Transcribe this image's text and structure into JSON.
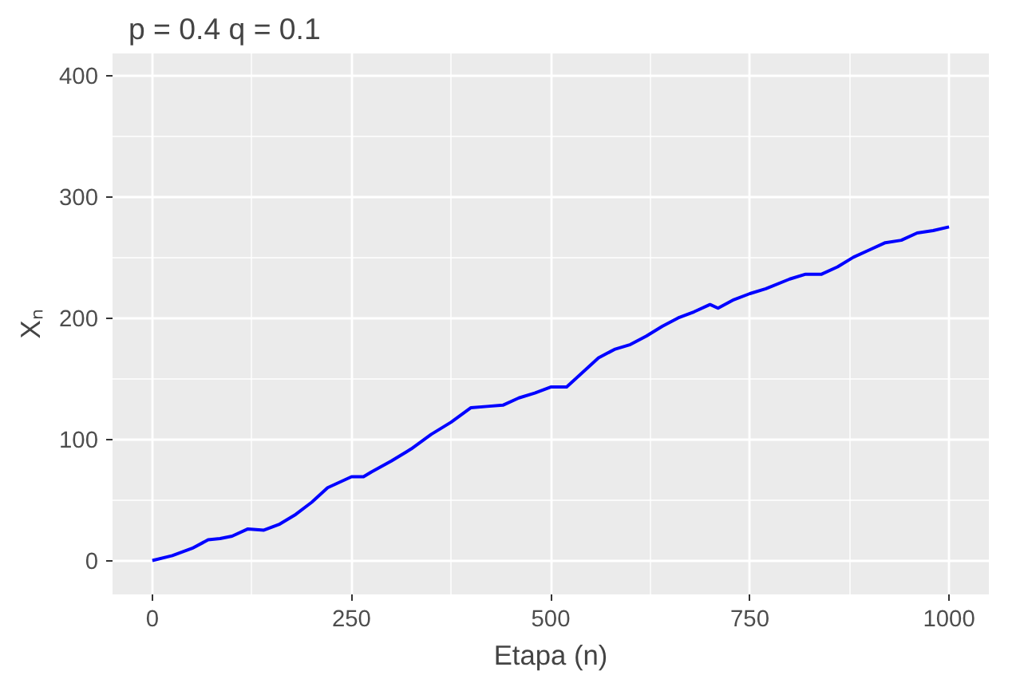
{
  "chart_data": {
    "type": "line",
    "title": "p = 0.4    q = 0.1",
    "xlabel": "Etapa (n)",
    "ylabel": "Xₙ",
    "x": [
      0,
      25,
      50,
      70,
      85,
      100,
      120,
      140,
      160,
      180,
      200,
      220,
      250,
      265,
      275,
      300,
      325,
      350,
      375,
      400,
      420,
      440,
      460,
      480,
      500,
      520,
      540,
      560,
      580,
      600,
      620,
      640,
      660,
      680,
      700,
      710,
      730,
      750,
      770,
      800,
      820,
      840,
      860,
      880,
      900,
      920,
      940,
      960,
      980,
      1000
    ],
    "series": [
      {
        "color": "#0000ff",
        "values": [
          0,
          4,
          10,
          17,
          18,
          20,
          26,
          25,
          30,
          38,
          48,
          60,
          69,
          69,
          73,
          82,
          92,
          104,
          114,
          126,
          127,
          128,
          134,
          138,
          143,
          143,
          155,
          167,
          174,
          178,
          185,
          193,
          200,
          205,
          211,
          208,
          215,
          220,
          224,
          232,
          236,
          236,
          242,
          250,
          256,
          262,
          264,
          270,
          272,
          275
        ]
      }
    ],
    "xlim": [
      -50,
      1050
    ],
    "ylim": [
      -28,
      418
    ],
    "xticks": [
      0,
      250,
      500,
      750,
      1000
    ],
    "yticks": [
      0,
      100,
      200,
      300,
      400
    ],
    "grid": true
  }
}
